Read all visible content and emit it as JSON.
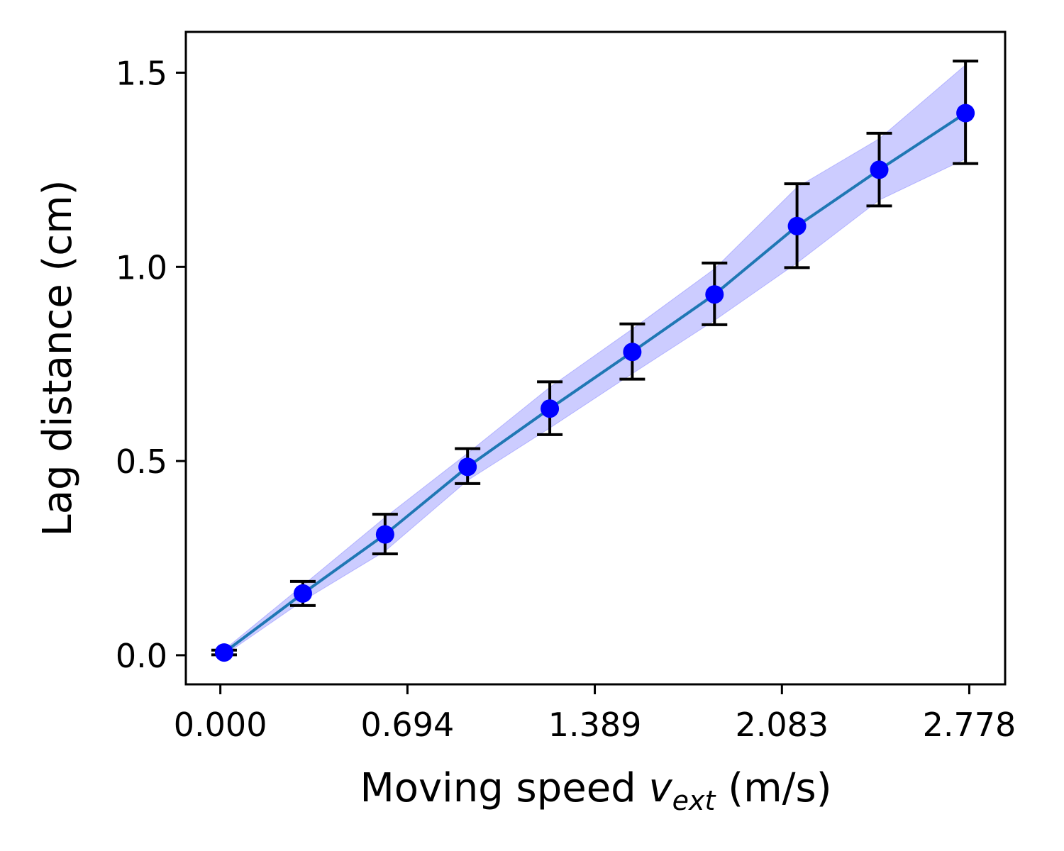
{
  "chart_data": {
    "type": "line",
    "xlabel": {
      "prefix": "Moving speed ",
      "var_main": "v",
      "var_sub": "ext",
      "suffix": " (m/s)"
    },
    "ylabel": "Lag distance (cm)",
    "x_ticks": [
      {
        "value": 0.0,
        "label": "0.000"
      },
      {
        "value": 0.694,
        "label": "0.694"
      },
      {
        "value": 1.389,
        "label": "1.389"
      },
      {
        "value": 2.083,
        "label": "2.083"
      },
      {
        "value": 2.778,
        "label": "2.778"
      }
    ],
    "y_ticks": [
      {
        "value": 0.0,
        "label": "0.0"
      },
      {
        "value": 0.5,
        "label": "0.5"
      },
      {
        "value": 1.0,
        "label": "1.0"
      },
      {
        "value": 1.5,
        "label": "1.5"
      }
    ],
    "xlim": [
      -0.128,
      2.911
    ],
    "ylim": [
      -0.075,
      1.605
    ],
    "grid": false,
    "series": [
      {
        "x": [
          0.014,
          0.306,
          0.611,
          0.917,
          1.222,
          1.528,
          1.833,
          2.139,
          2.444,
          2.764
        ],
        "y": [
          0.007,
          0.159,
          0.311,
          0.485,
          0.635,
          0.781,
          0.929,
          1.105,
          1.25,
          1.396
        ],
        "err_low": [
          0.001,
          0.128,
          0.261,
          0.442,
          0.568,
          0.711,
          0.851,
          0.998,
          1.157,
          1.266
        ],
        "err_high": [
          0.013,
          0.19,
          0.363,
          0.532,
          0.704,
          0.853,
          1.01,
          1.214,
          1.344,
          1.53
        ],
        "band_low": [
          0.0,
          0.14,
          0.268,
          0.45,
          0.585,
          0.725,
          0.862,
          1.01,
          1.172,
          1.278
        ],
        "band_high": [
          0.014,
          0.18,
          0.355,
          0.52,
          0.69,
          0.84,
          0.995,
          1.205,
          1.33,
          1.52
        ]
      }
    ],
    "colors": {
      "line": "#1f77b4",
      "marker": "#0000ff",
      "band": "#0000ff",
      "errorbar": "#000000",
      "axes": "#000000"
    }
  }
}
